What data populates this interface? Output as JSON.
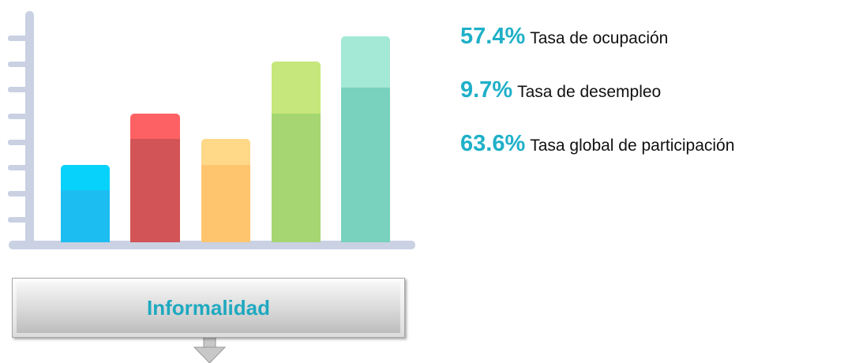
{
  "stats": [
    {
      "value": "57.4%",
      "label": "Tasa de ocupación"
    },
    {
      "value": "9.7%",
      "label": "Tasa de desempleo"
    },
    {
      "value": "63.6%",
      "label": "Tasa global de participación"
    }
  ],
  "button": {
    "label": "Informalidad"
  }
}
